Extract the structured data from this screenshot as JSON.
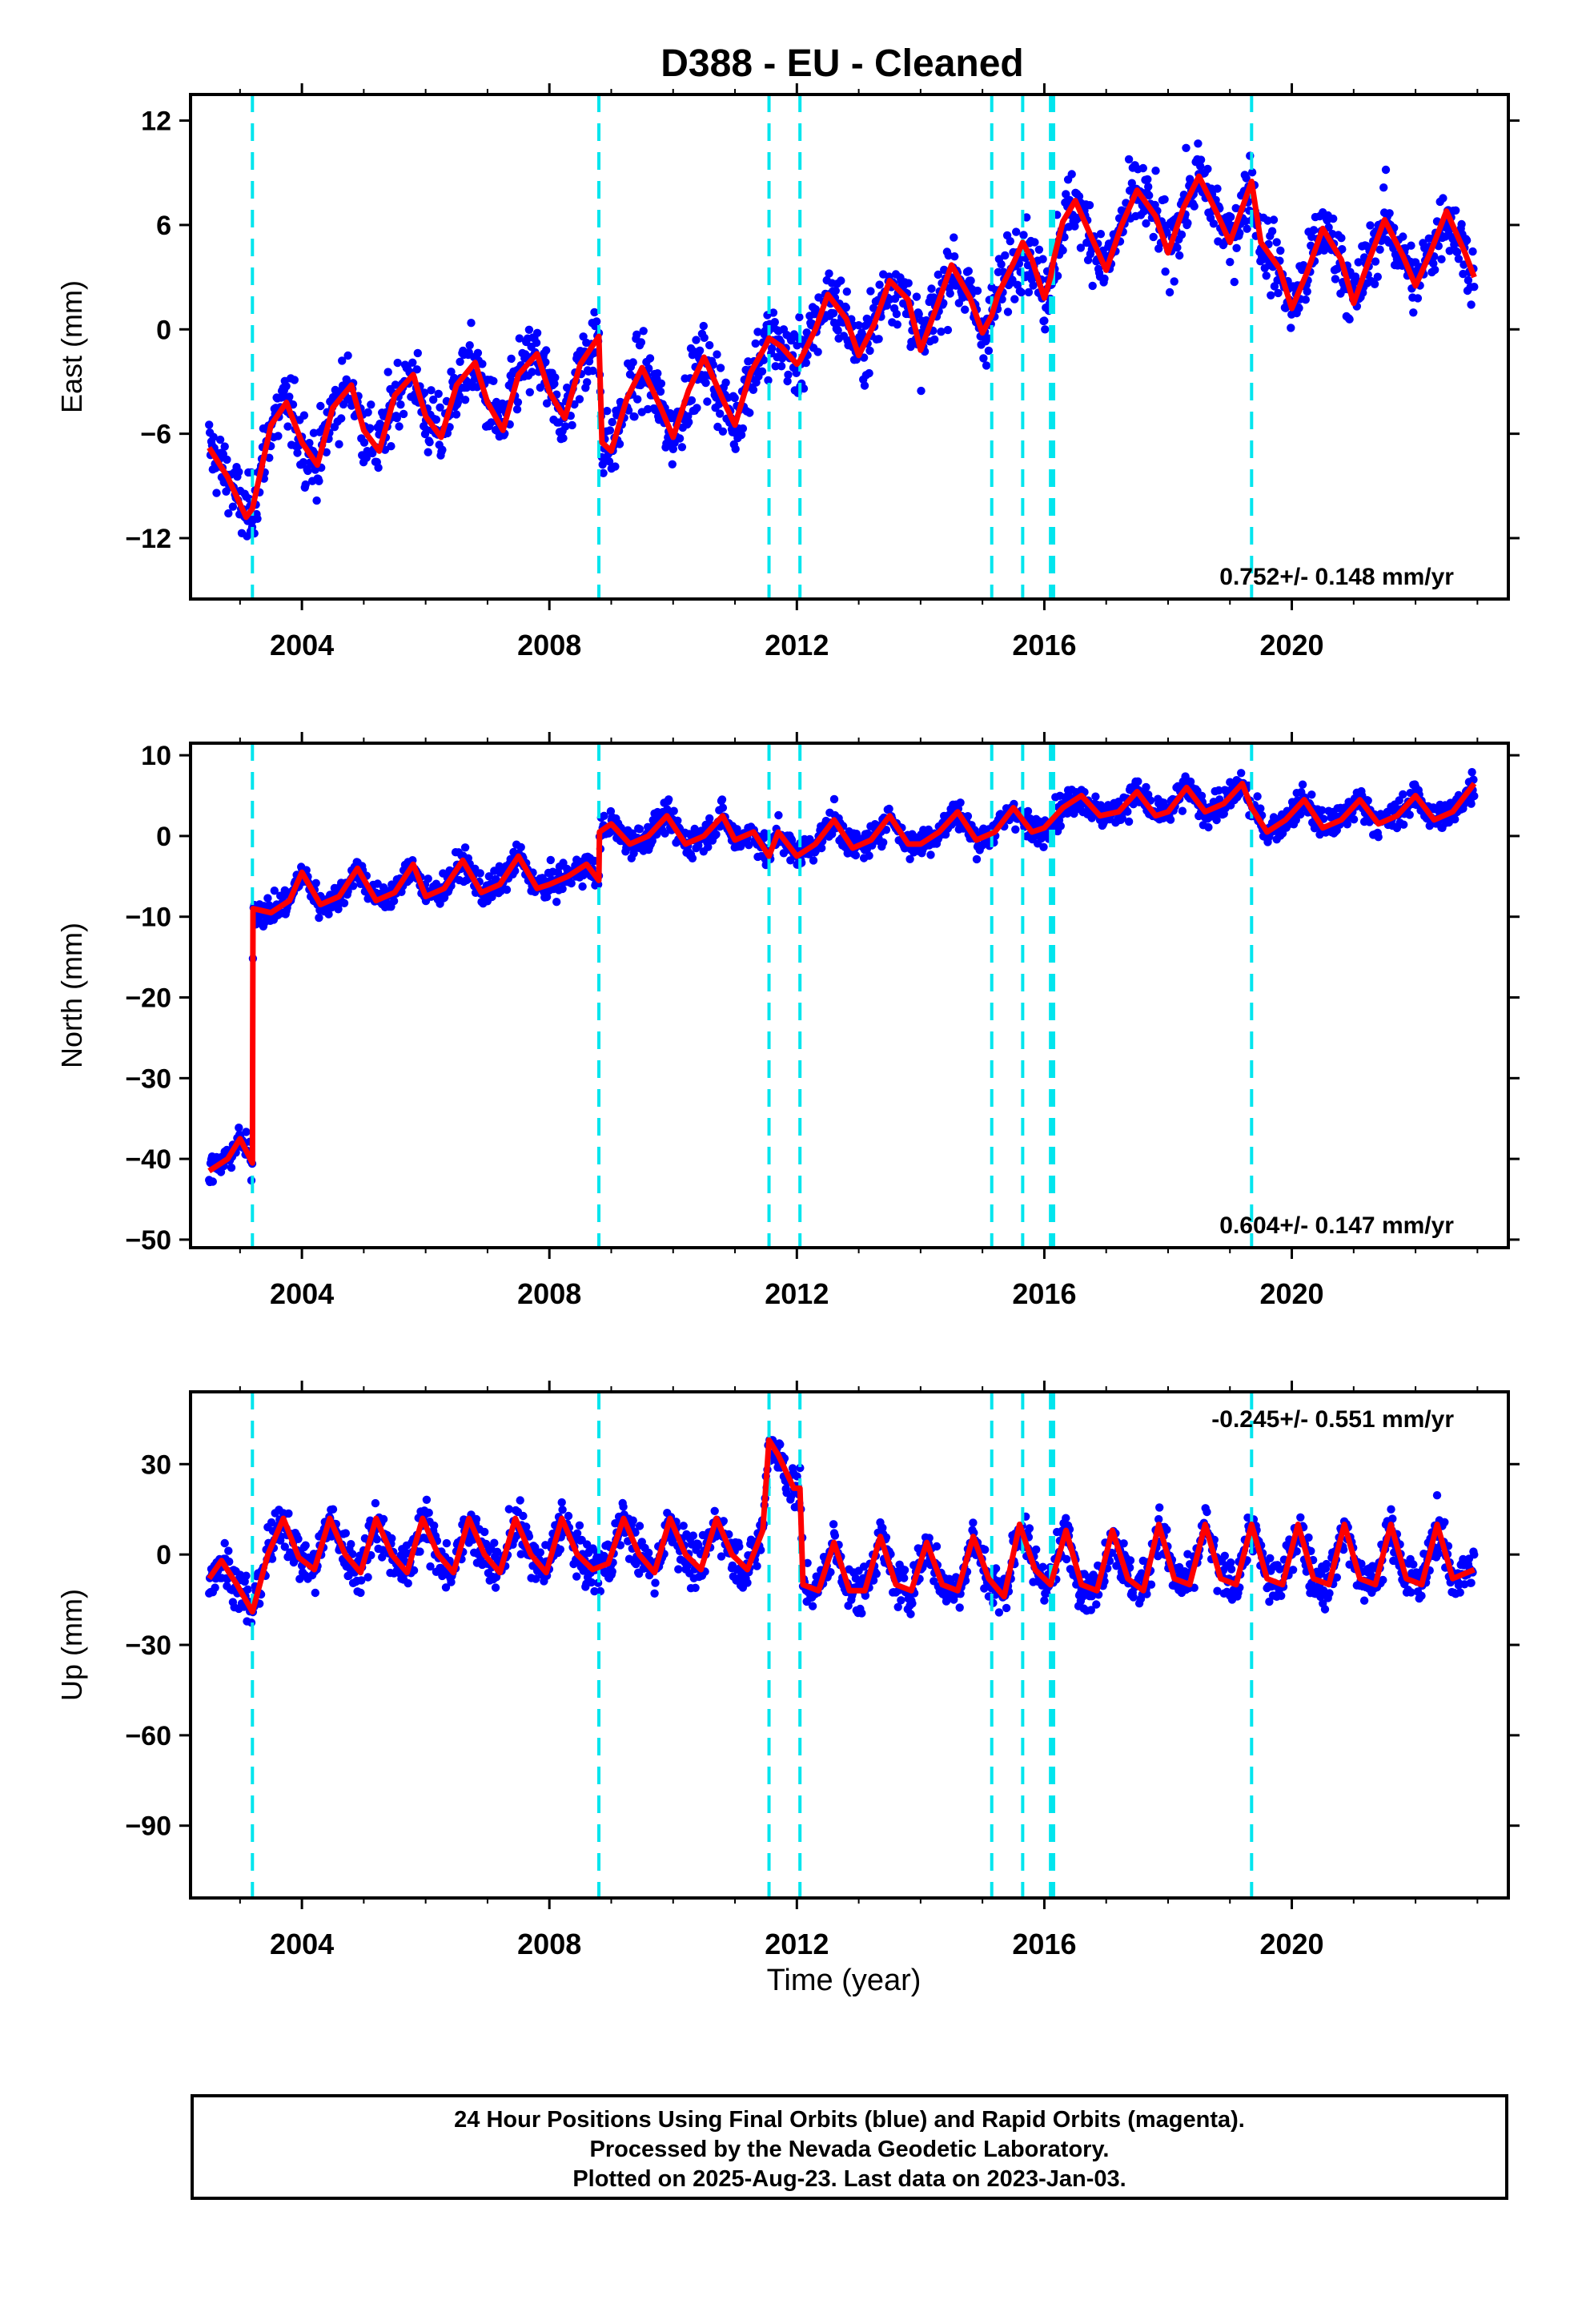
{
  "chart_data": {
    "title": "D388  - EU - Cleaned",
    "type": "scatter",
    "xlabel": "Time (year)",
    "xlim": [
      2002.2,
      2023.5
    ],
    "xticks": [
      2004,
      2008,
      2012,
      2016,
      2020
    ],
    "xtick_labels": [
      "2004",
      "2008",
      "2012",
      "2016",
      "2020"
    ],
    "event_lines": [
      2003.2,
      2008.8,
      2011.55,
      2012.05,
      2015.15,
      2015.65,
      2016.1,
      2016.15,
      2019.35
    ],
    "colors": {
      "points": "#0000ff",
      "model": "#ff0000",
      "events": "#00e5ee"
    },
    "panels": [
      {
        "name": "east",
        "ylabel": "East (mm)",
        "ylim": [
          -15.5,
          13.5
        ],
        "yticks": [
          -12,
          -6,
          0,
          6,
          12
        ],
        "ytick_labels": [
          "−12",
          "−6",
          "0",
          "6",
          "12"
        ],
        "rate": "0.752+/- 0.148 mm/yr",
        "rate_position": "bottom-right",
        "model": {
          "type": "line",
          "x": [
            2002.5,
            2002.8,
            2003.1,
            2003.2,
            2003.5,
            2003.75,
            2004.0,
            2004.25,
            2004.5,
            2004.8,
            2005.0,
            2005.25,
            2005.5,
            2005.8,
            2006.0,
            2006.25,
            2006.5,
            2006.8,
            2007.0,
            2007.25,
            2007.5,
            2007.8,
            2008.0,
            2008.25,
            2008.5,
            2008.8,
            2008.85,
            2009.0,
            2009.25,
            2009.5,
            2009.8,
            2010.0,
            2010.25,
            2010.5,
            2010.8,
            2011.0,
            2011.25,
            2011.5,
            2011.55,
            2011.75,
            2012.0,
            2012.05,
            2012.3,
            2012.5,
            2012.8,
            2013.0,
            2013.25,
            2013.5,
            2013.8,
            2014.0,
            2014.25,
            2014.5,
            2014.8,
            2015.0,
            2015.15,
            2015.25,
            2015.5,
            2015.65,
            2015.8,
            2016.0,
            2016.1,
            2016.15,
            2016.3,
            2016.5,
            2016.8,
            2017.0,
            2017.25,
            2017.5,
            2017.8,
            2018.0,
            2018.25,
            2018.5,
            2018.8,
            2019.0,
            2019.25,
            2019.35,
            2019.5,
            2019.8,
            2020.0,
            2020.25,
            2020.5,
            2020.8,
            2021.0,
            2021.25,
            2021.5,
            2021.8,
            2022.0,
            2022.25,
            2022.5,
            2022.8,
            2022.95
          ],
          "y": [
            -6.8,
            -8.5,
            -10.8,
            -10.3,
            -5.5,
            -4.2,
            -6.5,
            -7.8,
            -4.5,
            -3.2,
            -5.8,
            -7.0,
            -3.8,
            -2.6,
            -5.0,
            -6.2,
            -3.2,
            -1.9,
            -4.2,
            -5.8,
            -2.6,
            -1.4,
            -3.6,
            -5.1,
            -2.0,
            -0.4,
            -6.5,
            -7.0,
            -4.0,
            -2.2,
            -4.5,
            -6.2,
            -3.5,
            -1.6,
            -4.0,
            -5.5,
            -2.5,
            -0.9,
            -0.5,
            -1.0,
            -2.0,
            -1.8,
            0.0,
            2.0,
            0.6,
            -1.5,
            0.3,
            2.8,
            1.7,
            -1.2,
            1.2,
            3.7,
            1.8,
            -0.2,
            0.8,
            2.0,
            3.8,
            5.0,
            4.0,
            1.8,
            3.0,
            4.0,
            6.2,
            7.4,
            5.0,
            3.4,
            6.0,
            8.0,
            6.5,
            4.4,
            7.0,
            8.8,
            6.6,
            5.0,
            7.5,
            8.5,
            5.0,
            3.5,
            1.2,
            3.3,
            5.8,
            4.0,
            1.5,
            4.0,
            6.3,
            4.2,
            2.5,
            4.5,
            6.8,
            4.4,
            3.0
          ]
        }
      },
      {
        "name": "north",
        "ylabel": "North (mm)",
        "ylim": [
          -51,
          11.5
        ],
        "yticks": [
          -50,
          -40,
          -30,
          -20,
          -10,
          0,
          10
        ],
        "ytick_labels": [
          "−50",
          "−40",
          "−30",
          "−20",
          "−10",
          "0",
          "10"
        ],
        "rate": "0.604+/- 0.147 mm/yr",
        "rate_position": "bottom-right",
        "model": {
          "type": "line",
          "x": [
            2002.5,
            2002.8,
            2003.0,
            2003.2,
            2003.21,
            2003.5,
            2003.8,
            2004.0,
            2004.3,
            2004.6,
            2004.9,
            2005.2,
            2005.5,
            2005.8,
            2006.0,
            2006.3,
            2006.6,
            2006.9,
            2007.2,
            2007.5,
            2007.8,
            2008.0,
            2008.3,
            2008.6,
            2008.8,
            2008.81,
            2009.0,
            2009.3,
            2009.6,
            2009.9,
            2010.2,
            2010.5,
            2010.8,
            2011.0,
            2011.3,
            2011.55,
            2011.7,
            2012.0,
            2012.3,
            2012.6,
            2012.9,
            2013.2,
            2013.5,
            2013.8,
            2014.0,
            2014.3,
            2014.6,
            2014.9,
            2015.2,
            2015.5,
            2015.8,
            2016.0,
            2016.3,
            2016.6,
            2016.9,
            2017.2,
            2017.5,
            2017.8,
            2018.0,
            2018.3,
            2018.6,
            2018.9,
            2019.2,
            2019.35,
            2019.6,
            2019.9,
            2020.2,
            2020.5,
            2020.8,
            2021.1,
            2021.4,
            2021.7,
            2022.0,
            2022.3,
            2022.6,
            2022.95
          ],
          "y": [
            -41.5,
            -40.0,
            -37.5,
            -40.5,
            -9.0,
            -9.5,
            -8.0,
            -4.5,
            -8.5,
            -7.5,
            -4.0,
            -8.0,
            -7.0,
            -3.5,
            -7.5,
            -6.5,
            -3.0,
            -7.0,
            -6.0,
            -2.5,
            -6.5,
            -6.0,
            -5.0,
            -3.5,
            -5.5,
            0.5,
            1.5,
            -1.0,
            0.0,
            2.5,
            -1.0,
            0.0,
            2.5,
            -0.5,
            0.5,
            -2.5,
            0.5,
            -2.5,
            -1.0,
            2.0,
            -1.5,
            -0.5,
            2.5,
            -1.0,
            -1.0,
            0.5,
            3.0,
            -0.5,
            0.5,
            3.5,
            0.5,
            1.0,
            3.5,
            5.0,
            2.5,
            3.0,
            5.5,
            2.5,
            3.0,
            6.0,
            3.0,
            4.0,
            6.5,
            3.5,
            0.5,
            2.0,
            4.5,
            1.0,
            2.0,
            4.5,
            1.5,
            2.5,
            5.0,
            2.0,
            3.0,
            6.5
          ]
        }
      },
      {
        "name": "up",
        "ylabel": "Up (mm)",
        "ylim": [
          -114,
          54
        ],
        "yticks": [
          -90,
          -60,
          -30,
          0,
          30
        ],
        "ytick_labels": [
          "−90",
          "−60",
          "−30",
          "0",
          "30"
        ],
        "rate": "-0.245+/- 0.551 mm/yr",
        "rate_position": "top-right",
        "model": {
          "type": "line",
          "x": [
            2002.5,
            2002.7,
            2002.95,
            2003.2,
            2003.45,
            2003.7,
            2003.95,
            2004.2,
            2004.45,
            2004.7,
            2004.95,
            2005.2,
            2005.45,
            2005.7,
            2005.95,
            2006.2,
            2006.45,
            2006.7,
            2006.95,
            2007.2,
            2007.45,
            2007.7,
            2007.95,
            2008.2,
            2008.45,
            2008.7,
            2008.95,
            2009.2,
            2009.45,
            2009.7,
            2009.95,
            2010.2,
            2010.45,
            2010.7,
            2010.95,
            2011.2,
            2011.45,
            2011.55,
            2011.7,
            2011.95,
            2012.05,
            2012.1,
            2012.35,
            2012.6,
            2012.85,
            2013.1,
            2013.35,
            2013.6,
            2013.85,
            2014.1,
            2014.35,
            2014.6,
            2014.85,
            2015.1,
            2015.35,
            2015.6,
            2015.85,
            2016.1,
            2016.35,
            2016.6,
            2016.85,
            2017.1,
            2017.35,
            2017.6,
            2017.85,
            2018.1,
            2018.35,
            2018.6,
            2018.85,
            2019.1,
            2019.35,
            2019.6,
            2019.85,
            2020.1,
            2020.35,
            2020.6,
            2020.85,
            2021.1,
            2021.35,
            2021.6,
            2021.85,
            2022.1,
            2022.35,
            2022.6,
            2022.95
          ],
          "y": [
            -8,
            -2,
            -10,
            -19,
            0,
            12,
            -1,
            -5,
            12,
            0,
            -6,
            12,
            0,
            -6,
            12,
            0,
            -6,
            12,
            0,
            -6,
            12,
            0,
            -6,
            12,
            0,
            -5,
            -3,
            12,
            0,
            -6,
            12,
            0,
            -5,
            12,
            0,
            -5,
            8,
            38,
            33,
            22,
            22,
            -10,
            -12,
            4,
            -12,
            -12,
            6,
            -10,
            -12,
            4,
            -10,
            -12,
            6,
            -8,
            -14,
            10,
            -5,
            -10,
            8,
            -10,
            -12,
            8,
            -8,
            -12,
            10,
            -8,
            -10,
            10,
            -8,
            -10,
            10,
            -8,
            -10,
            10,
            -8,
            -10,
            10,
            -8,
            -10,
            10,
            -8,
            -10,
            10,
            -8,
            -5
          ]
        }
      }
    ]
  },
  "footer": {
    "line1": "24 Hour Positions Using Final Orbits (blue) and Rapid Orbits (magenta).",
    "line2": "Processed by the Nevada Geodetic Laboratory.",
    "line3": "Plotted on 2025-Aug-23. Last data on 2023-Jan-03."
  }
}
